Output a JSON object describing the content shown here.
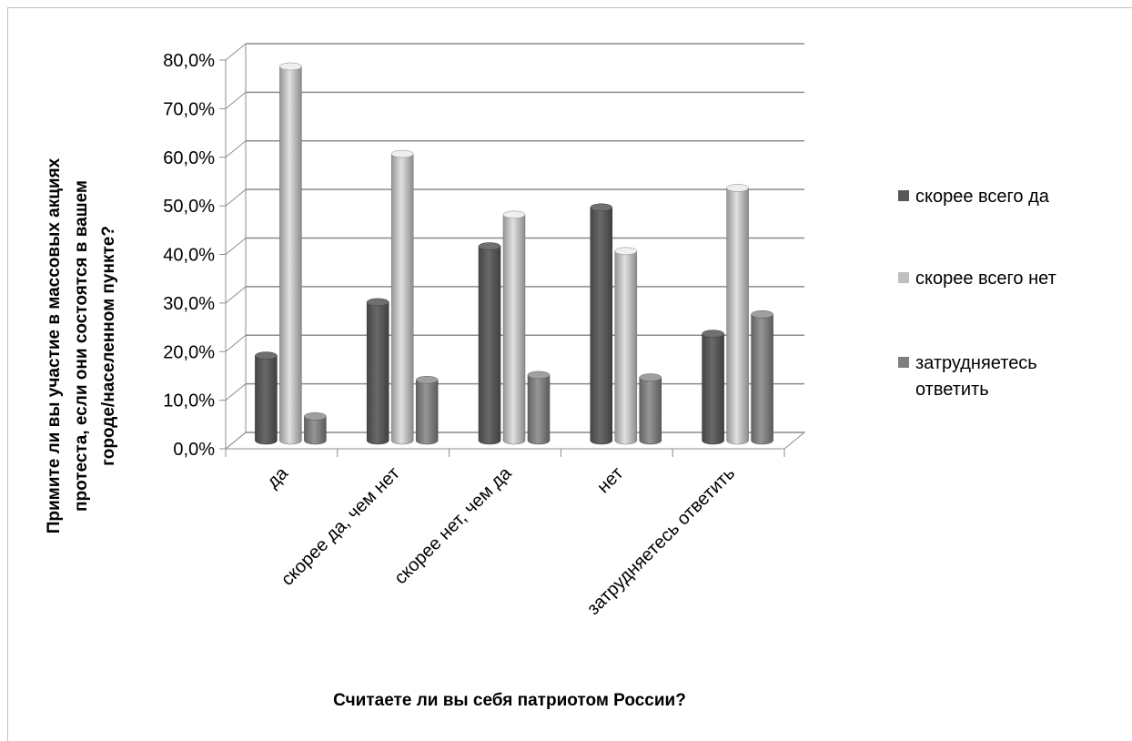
{
  "chart_data": {
    "type": "bar",
    "title": "",
    "xlabel": "Считаете ли вы себя патриотом России?",
    "ylabel": [
      "Примите ли вы участие в массовых акциях",
      "протеста, если они состоятся в вашем",
      "городе/населенном пункте?"
    ],
    "ylim": [
      0,
      80
    ],
    "yticks": [
      "0,0%",
      "10,0%",
      "20,0%",
      "30,0%",
      "40,0%",
      "50,0%",
      "60,0%",
      "70,0%",
      "80,0%"
    ],
    "categories": [
      "да",
      "скорее да, чем нет",
      "скорее нет, чем да",
      "нет",
      "затрудняетесь ответить"
    ],
    "series": [
      {
        "name": "скорее всего да",
        "color": "#595959",
        "values": [
          17.5,
          28.5,
          40.0,
          48.0,
          22.0
        ]
      },
      {
        "name": "скорее всего нет",
        "color": "#bfbfbf",
        "values": [
          77.0,
          59.0,
          46.5,
          39.0,
          52.0
        ]
      },
      {
        "name": "затрудняетесь ответить",
        "color": "#7f7f7f",
        "values": [
          5.0,
          12.5,
          13.5,
          13.0,
          26.0
        ]
      }
    ],
    "legend_position": "right",
    "grid": true,
    "style": "3d-cylinder"
  }
}
